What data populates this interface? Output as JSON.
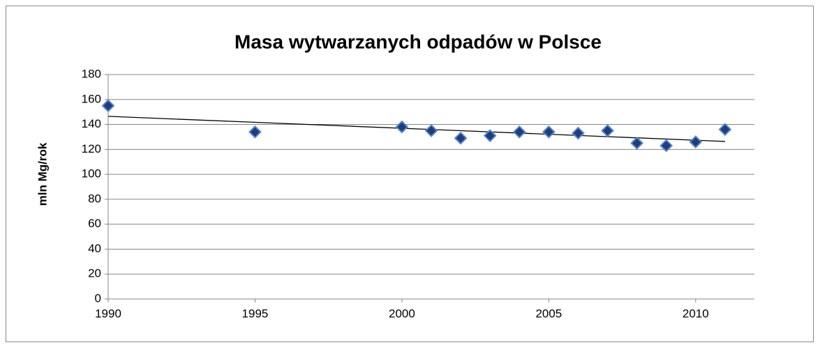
{
  "chart_data": {
    "type": "scatter",
    "title": "Masa wytwarzanych odpadów w Polsce",
    "y_label": "mln  Mg/rok",
    "x": [
      1990,
      1995,
      2000,
      2001,
      2002,
      2003,
      2004,
      2005,
      2006,
      2007,
      2008,
      2009,
      2010,
      2011
    ],
    "series": [
      {
        "color": "#1f3d7a",
        "values": [
          155,
          134,
          138,
          135,
          129,
          131,
          134,
          134,
          133,
          135,
          125,
          123,
          126,
          136
        ]
      }
    ],
    "xlim": [
      1990,
      2012
    ],
    "xticks": [
      1990,
      1995,
      2000,
      2005,
      2010
    ],
    "ylim": [
      0,
      180
    ],
    "yticks": [
      0,
      20,
      40,
      60,
      80,
      100,
      120,
      140,
      160,
      180
    ],
    "grid": true,
    "trendline": true
  }
}
